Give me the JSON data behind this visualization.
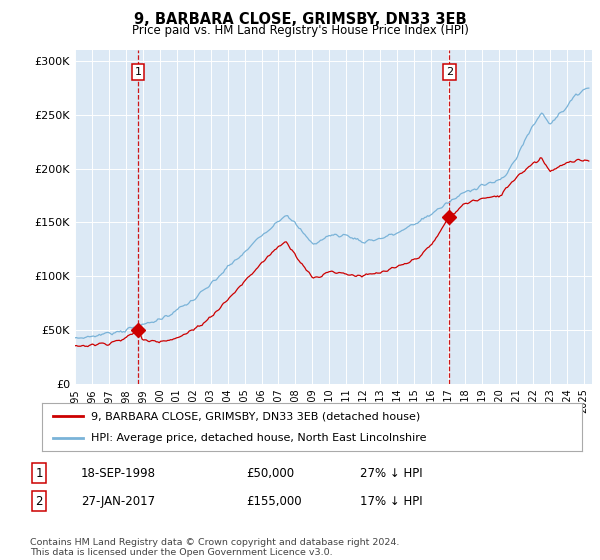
{
  "title": "9, BARBARA CLOSE, GRIMSBY, DN33 3EB",
  "subtitle": "Price paid vs. HM Land Registry's House Price Index (HPI)",
  "ylim": [
    0,
    310000
  ],
  "yticks": [
    0,
    50000,
    100000,
    150000,
    200000,
    250000,
    300000
  ],
  "ytick_labels": [
    "£0",
    "£50K",
    "£100K",
    "£150K",
    "£200K",
    "£250K",
    "£300K"
  ],
  "bg_color": "#dce9f5",
  "grid_color": "#ffffff",
  "hpi_color": "#7ab3d8",
  "price_color": "#cc0000",
  "dashed_color": "#cc0000",
  "sale1_date": 1998.72,
  "sale1_price": 50000,
  "sale2_date": 2017.07,
  "sale2_price": 155000,
  "legend_label1": "9, BARBARA CLOSE, GRIMSBY, DN33 3EB (detached house)",
  "legend_label2": "HPI: Average price, detached house, North East Lincolnshire",
  "table_row1": [
    "1",
    "18-SEP-1998",
    "£50,000",
    "27% ↓ HPI"
  ],
  "table_row2": [
    "2",
    "27-JAN-2017",
    "£155,000",
    "17% ↓ HPI"
  ],
  "footnote": "Contains HM Land Registry data © Crown copyright and database right 2024.\nThis data is licensed under the Open Government Licence v3.0.",
  "xmin": 1995.0,
  "xmax": 2025.5,
  "hpi_knots_x": [
    1995,
    1996,
    1997,
    1998,
    1999,
    2000,
    2001,
    2002,
    2003,
    2004,
    2005,
    2006,
    2007,
    2007.5,
    2008,
    2009,
    2009.5,
    2010,
    2011,
    2012,
    2013,
    2014,
    2015,
    2016,
    2017,
    2018,
    2019,
    2020,
    2020.5,
    2021,
    2022,
    2022.5,
    2023,
    2024,
    2025
  ],
  "hpi_knots_y": [
    42000,
    44000,
    47000,
    50000,
    54000,
    60000,
    68000,
    78000,
    92000,
    108000,
    122000,
    138000,
    152000,
    158000,
    148000,
    130000,
    133000,
    138000,
    138000,
    132000,
    135000,
    140000,
    148000,
    158000,
    168000,
    178000,
    185000,
    188000,
    196000,
    210000,
    240000,
    252000,
    242000,
    258000,
    275000
  ],
  "price_knots_x": [
    1995,
    1996,
    1997,
    1998,
    1998.72,
    1999,
    2000,
    2001,
    2002,
    2003,
    2004,
    2005,
    2006,
    2007,
    2007.5,
    2008,
    2009,
    2009.5,
    2010,
    2011,
    2012,
    2013,
    2014,
    2015,
    2016,
    2017.07,
    2017.5,
    2018,
    2019,
    2020,
    2021,
    2022,
    2022.5,
    2023,
    2024,
    2025
  ],
  "price_knots_y": [
    35000,
    36000,
    38000,
    42000,
    50000,
    40000,
    40000,
    42000,
    50000,
    62000,
    78000,
    95000,
    112000,
    128000,
    132000,
    120000,
    98000,
    100000,
    105000,
    102000,
    100000,
    103000,
    108000,
    115000,
    128000,
    155000,
    160000,
    168000,
    172000,
    174000,
    192000,
    205000,
    210000,
    198000,
    205000,
    208000
  ]
}
